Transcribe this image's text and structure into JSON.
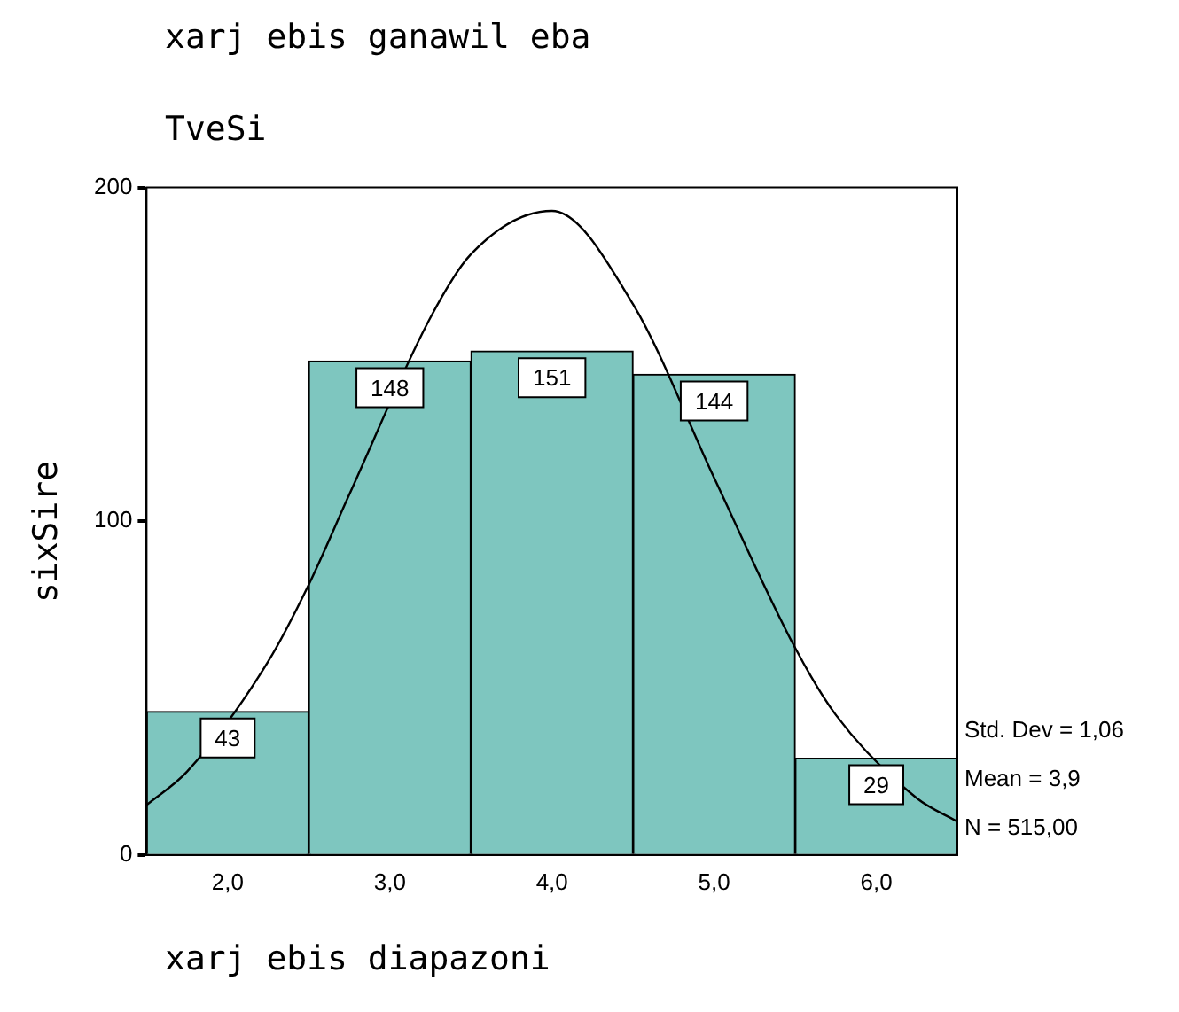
{
  "chart_data": {
    "type": "histogram",
    "title": "xarj ebis ganawil eba",
    "subtitle": "TveSi",
    "xlabel": "xarj ebis diapazoni",
    "ylabel": "sixSire",
    "bins": [
      1.5,
      2.5,
      3.5,
      4.5,
      5.5,
      6.5
    ],
    "values": [
      43,
      148,
      151,
      144,
      29
    ],
    "color": "#7ec6bf",
    "value_labels": [
      "43",
      "148",
      "151",
      "144",
      "29"
    ],
    "series": [
      {
        "type": "line",
        "color": "#000000",
        "x": [
          1.5,
          1.75,
          2.25,
          2.5,
          2.75,
          3.25,
          3.5,
          4,
          4.5,
          5,
          5.5,
          5.75,
          6.25,
          6.5
        ],
        "values": [
          15,
          25,
          58,
          81,
          108,
          161,
          180,
          193,
          165,
          113,
          62,
          42,
          17,
          10
        ]
      }
    ],
    "xlim": [
      1.5,
      6.5
    ],
    "xticks": [
      {
        "value": 2,
        "label": "2,0"
      },
      {
        "value": 3,
        "label": "3,0"
      },
      {
        "value": 4,
        "label": "4,0"
      },
      {
        "value": 5,
        "label": "5,0"
      },
      {
        "value": 6,
        "label": "6,0"
      }
    ],
    "ylim": [
      0,
      200
    ],
    "yticks": [
      0,
      100,
      200
    ],
    "annotations": [
      "Std. Dev = 1,06",
      "Mean = 3,9",
      "N = 515,00"
    ]
  }
}
